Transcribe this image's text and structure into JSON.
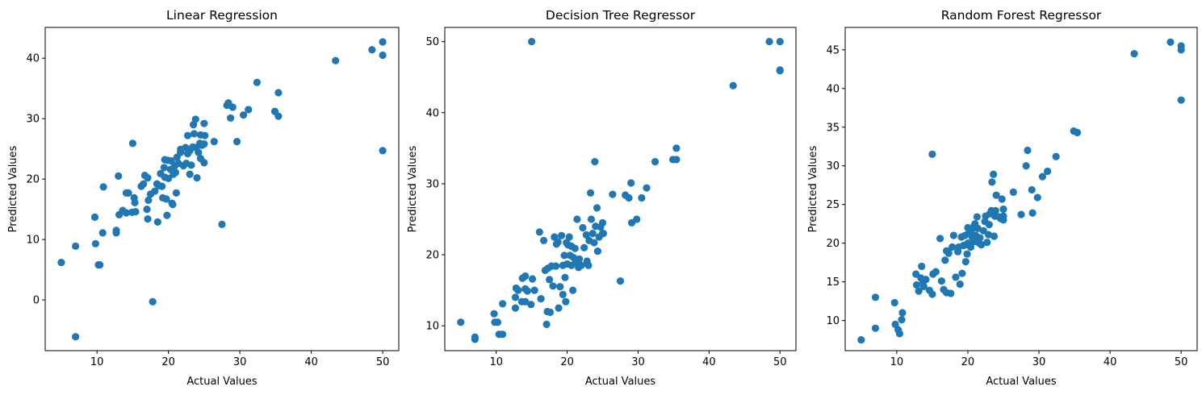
{
  "chart_data": [
    {
      "type": "scatter",
      "title": "Linear Regression",
      "xlabel": "Actual Values",
      "ylabel": "Predicted Values",
      "xlim": [
        2.75,
        52.25
      ],
      "ylim": [
        -8.4,
        45.1
      ],
      "xticks": [
        10,
        20,
        30,
        40,
        50
      ],
      "yticks": [
        0,
        10,
        20,
        30,
        40
      ],
      "color": "#1f77b4",
      "points": [
        [
          5.0,
          6.2
        ],
        [
          7.0,
          -6.1
        ],
        [
          7.0,
          8.9
        ],
        [
          9.7,
          13.7
        ],
        [
          9.8,
          9.3
        ],
        [
          10.2,
          5.8
        ],
        [
          10.4,
          5.8
        ],
        [
          10.9,
          18.7
        ],
        [
          10.8,
          11.1
        ],
        [
          12.7,
          11.5
        ],
        [
          12.7,
          11.1
        ],
        [
          13.0,
          20.5
        ],
        [
          13.1,
          14.1
        ],
        [
          13.6,
          14.8
        ],
        [
          14.1,
          17.7
        ],
        [
          14.1,
          14.4
        ],
        [
          14.4,
          17.7
        ],
        [
          14.9,
          14.5
        ],
        [
          15.0,
          25.9
        ],
        [
          15.2,
          16.9
        ],
        [
          15.3,
          16.1
        ],
        [
          15.4,
          14.6
        ],
        [
          16.2,
          18.8
        ],
        [
          16.5,
          19.2
        ],
        [
          16.7,
          20.6
        ],
        [
          17.0,
          15.0
        ],
        [
          17.1,
          20.2
        ],
        [
          17.1,
          13.4
        ],
        [
          17.2,
          16.5
        ],
        [
          17.5,
          17.5
        ],
        [
          17.8,
          -0.3
        ],
        [
          18.1,
          18.0
        ],
        [
          18.4,
          19.2
        ],
        [
          18.5,
          12.9
        ],
        [
          18.7,
          18.9
        ],
        [
          18.9,
          20.9
        ],
        [
          19.1,
          18.8
        ],
        [
          19.2,
          16.9
        ],
        [
          19.4,
          21.9
        ],
        [
          19.5,
          20.3
        ],
        [
          19.5,
          23.2
        ],
        [
          19.7,
          16.7
        ],
        [
          19.8,
          14.0
        ],
        [
          19.9,
          23.1
        ],
        [
          20.0,
          20.1
        ],
        [
          20.3,
          21.6
        ],
        [
          20.4,
          23.0
        ],
        [
          20.5,
          16.0
        ],
        [
          20.6,
          15.8
        ],
        [
          20.7,
          20.8
        ],
        [
          20.9,
          22.2
        ],
        [
          21.0,
          21.1
        ],
        [
          21.1,
          17.7
        ],
        [
          21.2,
          23.6
        ],
        [
          21.4,
          22.6
        ],
        [
          21.7,
          24.9
        ],
        [
          21.7,
          24.4
        ],
        [
          22.1,
          22.2
        ],
        [
          22.4,
          25.2
        ],
        [
          22.5,
          22.6
        ],
        [
          22.7,
          24.2
        ],
        [
          22.7,
          27.2
        ],
        [
          23.0,
          24.7
        ],
        [
          23.0,
          20.8
        ],
        [
          23.2,
          22.3
        ],
        [
          23.4,
          25.3
        ],
        [
          23.5,
          29.0
        ],
        [
          23.6,
          27.5
        ],
        [
          23.8,
          29.9
        ],
        [
          23.9,
          25.2
        ],
        [
          24.0,
          20.2
        ],
        [
          24.2,
          24.4
        ],
        [
          24.4,
          25.9
        ],
        [
          24.5,
          27.3
        ],
        [
          24.5,
          23.4
        ],
        [
          24.7,
          25.6
        ],
        [
          25.0,
          29.2
        ],
        [
          25.0,
          25.8
        ],
        [
          25.0,
          22.7
        ],
        [
          25.1,
          27.2
        ],
        [
          26.4,
          26.2
        ],
        [
          27.5,
          12.5
        ],
        [
          28.2,
          32.2
        ],
        [
          28.4,
          32.6
        ],
        [
          28.7,
          30.1
        ],
        [
          29.0,
          31.9
        ],
        [
          29.6,
          26.2
        ],
        [
          30.5,
          30.6
        ],
        [
          31.2,
          31.5
        ],
        [
          32.4,
          36.0
        ],
        [
          34.9,
          31.2
        ],
        [
          35.4,
          34.3
        ],
        [
          35.4,
          30.4
        ],
        [
          43.4,
          39.6
        ],
        [
          48.5,
          41.4
        ],
        [
          50.0,
          42.7
        ],
        [
          50.0,
          40.5
        ],
        [
          50.0,
          24.7
        ]
      ]
    },
    {
      "type": "scatter",
      "title": "Decision Tree Regressor",
      "xlabel": "Actual Values",
      "ylabel": "Predicted Values",
      "xlim": [
        2.75,
        52.25
      ],
      "ylim": [
        6.5,
        52.0
      ],
      "xticks": [
        10,
        20,
        30,
        40,
        50
      ],
      "yticks": [
        10,
        20,
        30,
        40,
        50
      ],
      "color": "#1f77b4",
      "points": [
        [
          5.0,
          10.5
        ],
        [
          7.0,
          8.4
        ],
        [
          7.0,
          8.1
        ],
        [
          9.7,
          11.7
        ],
        [
          9.8,
          10.5
        ],
        [
          10.2,
          10.5
        ],
        [
          10.4,
          8.8
        ],
        [
          10.9,
          8.8
        ],
        [
          10.9,
          13.1
        ],
        [
          12.7,
          12.5
        ],
        [
          12.7,
          14.0
        ],
        [
          12.8,
          15.3
        ],
        [
          13.1,
          15.0
        ],
        [
          13.6,
          13.4
        ],
        [
          13.7,
          16.7
        ],
        [
          14.1,
          17.0
        ],
        [
          14.1,
          15.2
        ],
        [
          14.1,
          13.4
        ],
        [
          14.4,
          14.9
        ],
        [
          14.9,
          13.0
        ],
        [
          15.0,
          50.0
        ],
        [
          15.1,
          16.6
        ],
        [
          15.4,
          15.0
        ],
        [
          16.1,
          23.2
        ],
        [
          16.3,
          13.8
        ],
        [
          16.7,
          22.0
        ],
        [
          16.9,
          17.8
        ],
        [
          17.1,
          10.2
        ],
        [
          17.2,
          12.0
        ],
        [
          17.3,
          18.1
        ],
        [
          17.5,
          16.5
        ],
        [
          17.6,
          11.9
        ],
        [
          17.8,
          18.4
        ],
        [
          18.0,
          15.6
        ],
        [
          18.2,
          22.5
        ],
        [
          18.4,
          18.4
        ],
        [
          18.5,
          21.5
        ],
        [
          18.7,
          21.8
        ],
        [
          18.8,
          12.5
        ],
        [
          19.0,
          15.5
        ],
        [
          19.2,
          22.7
        ],
        [
          19.4,
          18.5
        ],
        [
          19.4,
          14.4
        ],
        [
          19.6,
          19.9
        ],
        [
          19.7,
          16.8
        ],
        [
          19.8,
          13.4
        ],
        [
          19.9,
          21.7
        ],
        [
          20.0,
          18.7
        ],
        [
          20.1,
          21.4
        ],
        [
          20.3,
          22.5
        ],
        [
          20.4,
          19.9
        ],
        [
          20.6,
          18.5
        ],
        [
          20.6,
          21.2
        ],
        [
          20.8,
          15.0
        ],
        [
          20.9,
          19.6
        ],
        [
          21.1,
          20.9
        ],
        [
          21.2,
          18.9
        ],
        [
          21.4,
          25.0
        ],
        [
          21.6,
          18.2
        ],
        [
          21.7,
          19.4
        ],
        [
          22.0,
          18.5
        ],
        [
          22.2,
          23.8
        ],
        [
          22.4,
          21.0
        ],
        [
          22.7,
          22.8
        ],
        [
          22.8,
          19.1
        ],
        [
          23.0,
          18.5
        ],
        [
          23.1,
          22.0
        ],
        [
          23.3,
          28.7
        ],
        [
          23.4,
          25.0
        ],
        [
          23.6,
          23.0
        ],
        [
          23.8,
          21.7
        ],
        [
          23.9,
          33.1
        ],
        [
          24.0,
          24.0
        ],
        [
          24.2,
          26.6
        ],
        [
          24.3,
          20.5
        ],
        [
          24.5,
          22.5
        ],
        [
          24.7,
          23.9
        ],
        [
          25.0,
          23.0
        ],
        [
          25.0,
          24.5
        ],
        [
          25.1,
          23.0
        ],
        [
          26.4,
          28.5
        ],
        [
          27.5,
          16.3
        ],
        [
          28.2,
          28.4
        ],
        [
          28.7,
          28.0
        ],
        [
          29.0,
          30.1
        ],
        [
          29.1,
          24.5
        ],
        [
          29.8,
          25.0
        ],
        [
          30.5,
          28.0
        ],
        [
          31.2,
          29.4
        ],
        [
          32.4,
          33.1
        ],
        [
          34.9,
          33.4
        ],
        [
          35.4,
          35.0
        ],
        [
          35.4,
          33.4
        ],
        [
          43.4,
          43.8
        ],
        [
          48.5,
          50.0
        ],
        [
          50.0,
          50.0
        ],
        [
          50.0,
          46.0
        ],
        [
          50.0,
          45.9
        ]
      ]
    },
    {
      "type": "scatter",
      "title": "Random Forest Regressor",
      "xlabel": "Actual Values",
      "ylabel": "Predicted Values",
      "xlim": [
        2.75,
        52.25
      ],
      "ylim": [
        6.1,
        47.9
      ],
      "xticks": [
        10,
        20,
        30,
        40,
        50
      ],
      "yticks": [
        10,
        15,
        20,
        25,
        30,
        35,
        40,
        45
      ],
      "color": "#1f77b4",
      "points": [
        [
          5.0,
          7.5
        ],
        [
          7.0,
          13.0
        ],
        [
          7.0,
          9.0
        ],
        [
          9.7,
          12.3
        ],
        [
          9.8,
          9.5
        ],
        [
          10.2,
          8.8
        ],
        [
          10.4,
          8.3
        ],
        [
          10.7,
          10.1
        ],
        [
          10.8,
          11.0
        ],
        [
          12.7,
          16.0
        ],
        [
          12.8,
          14.6
        ],
        [
          13.1,
          13.8
        ],
        [
          13.4,
          15.5
        ],
        [
          13.5,
          17.0
        ],
        [
          13.7,
          15.0
        ],
        [
          13.8,
          14.4
        ],
        [
          14.1,
          15.3
        ],
        [
          14.6,
          13.9
        ],
        [
          15.0,
          31.5
        ],
        [
          15.0,
          13.4
        ],
        [
          15.1,
          16.0
        ],
        [
          15.5,
          16.3
        ],
        [
          16.1,
          20.6
        ],
        [
          16.3,
          15.1
        ],
        [
          16.6,
          14.0
        ],
        [
          16.8,
          17.8
        ],
        [
          17.0,
          13.6
        ],
        [
          17.0,
          19.0
        ],
        [
          17.3,
          18.7
        ],
        [
          17.6,
          13.5
        ],
        [
          17.8,
          19.5
        ],
        [
          18.0,
          21.0
        ],
        [
          18.3,
          15.6
        ],
        [
          18.6,
          18.9
        ],
        [
          18.7,
          19.5
        ],
        [
          18.9,
          14.7
        ],
        [
          19.1,
          20.8
        ],
        [
          19.2,
          16.1
        ],
        [
          19.4,
          19.7
        ],
        [
          19.6,
          21.0
        ],
        [
          19.7,
          17.6
        ],
        [
          19.8,
          19.8
        ],
        [
          19.9,
          18.6
        ],
        [
          20.0,
          20.0
        ],
        [
          20.0,
          22.0
        ],
        [
          20.2,
          21.5
        ],
        [
          20.4,
          19.5
        ],
        [
          20.5,
          21.7
        ],
        [
          20.6,
          20.8
        ],
        [
          20.8,
          22.1
        ],
        [
          20.9,
          20.2
        ],
        [
          21.0,
          22.5
        ],
        [
          21.1,
          21.0
        ],
        [
          21.2,
          20.5
        ],
        [
          21.3,
          23.4
        ],
        [
          21.4,
          21.9
        ],
        [
          21.6,
          20.0
        ],
        [
          21.7,
          20.7
        ],
        [
          21.9,
          19.8
        ],
        [
          22.2,
          21.6
        ],
        [
          22.4,
          22.8
        ],
        [
          22.5,
          23.5
        ],
        [
          22.7,
          20.1
        ],
        [
          22.9,
          21.1
        ],
        [
          23.0,
          22.4
        ],
        [
          23.1,
          23.8
        ],
        [
          23.3,
          24.2
        ],
        [
          23.4,
          27.9
        ],
        [
          23.6,
          28.9
        ],
        [
          23.7,
          20.9
        ],
        [
          23.8,
          23.5
        ],
        [
          23.9,
          24.2
        ],
        [
          24.0,
          26.2
        ],
        [
          24.4,
          23.4
        ],
        [
          24.6,
          23.2
        ],
        [
          24.8,
          25.7
        ],
        [
          25.0,
          24.4
        ],
        [
          25.0,
          23.5
        ],
        [
          25.0,
          23.0
        ],
        [
          26.4,
          26.6
        ],
        [
          27.5,
          23.7
        ],
        [
          28.2,
          30.0
        ],
        [
          28.4,
          32.0
        ],
        [
          29.0,
          26.9
        ],
        [
          29.1,
          23.9
        ],
        [
          29.8,
          25.9
        ],
        [
          30.5,
          28.6
        ],
        [
          31.2,
          29.3
        ],
        [
          32.4,
          31.2
        ],
        [
          34.9,
          34.5
        ],
        [
          35.4,
          34.3
        ],
        [
          43.4,
          44.5
        ],
        [
          48.5,
          46.0
        ],
        [
          50.0,
          45.5
        ],
        [
          50.0,
          45.0
        ],
        [
          50.0,
          38.5
        ]
      ]
    }
  ]
}
